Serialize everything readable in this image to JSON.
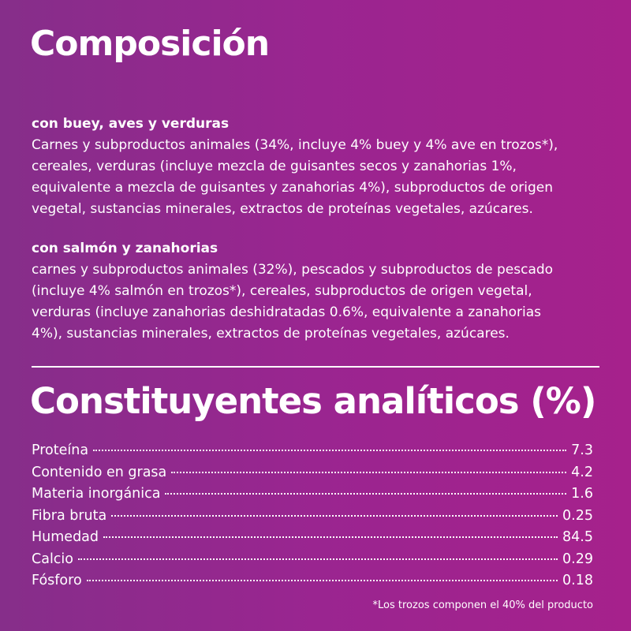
{
  "composition": {
    "title": "Composición",
    "sections": [
      {
        "heading": "con buey, aves y verduras",
        "lines": [
          "Carnes y subproductos animales (34%, incluye 4% buey y 4% ave en trozos*),",
          "cereales, verduras (incluye mezcla de guisantes secos y zanahorias 1%,",
          "equivalente a mezcla de guisantes y zanahorias 4%), subproductos de origen",
          "vegetal, sustancias minerales, extractos de proteínas vegetales, azúcares."
        ]
      },
      {
        "heading": "con salmón y zanahorias",
        "lines": [
          "carnes y subproductos animales (32%), pescados y subproductos de pescado",
          "(incluye 4% salmón en trozos*), cereales, subproductos de origen vegetal,",
          "verduras (incluye zanahorias deshidratadas 0.6%, equivalente a zanahorias",
          "4%), sustancias minerales, extractos de proteínas vegetales, azúcares."
        ]
      }
    ]
  },
  "analysis": {
    "title": "Constituyentes analíticos (%)",
    "rows": [
      [
        "Proteína",
        "7.3"
      ],
      [
        "Contenido en grasa",
        "4.2"
      ],
      [
        "Materia inorgánica",
        "1.6"
      ],
      [
        "Fibra bruta",
        "0.25"
      ],
      [
        "Humedad",
        "84.5"
      ],
      [
        "Calcio",
        "0.29"
      ],
      [
        "Fósforo",
        "0.18"
      ]
    ],
    "footnote": "*Los trozos componen el 40% del producto"
  }
}
